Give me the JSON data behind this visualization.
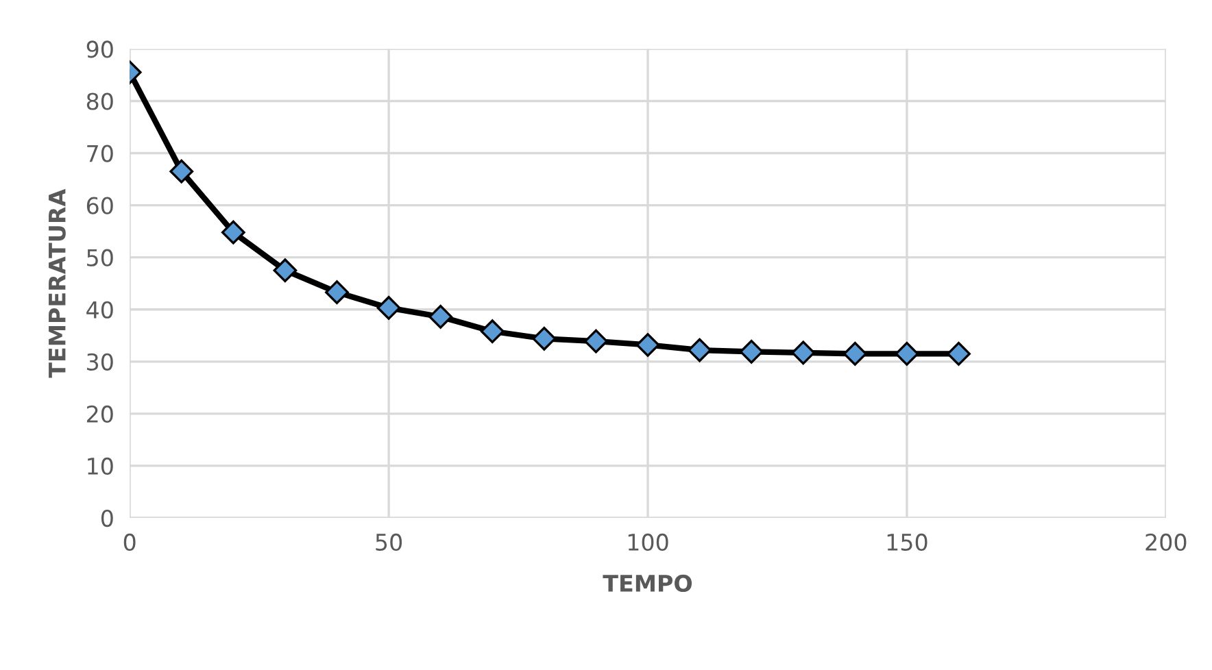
{
  "chart_data": {
    "type": "line",
    "xlabel": "TEMPO",
    "ylabel": "TEMPERATURA",
    "x": [
      0,
      10,
      20,
      30,
      40,
      50,
      60,
      70,
      80,
      90,
      100,
      110,
      120,
      130,
      140,
      150,
      160
    ],
    "series": [
      {
        "color": "#5b9bd5",
        "values": [
          85.5,
          66.5,
          54.8,
          47.5,
          43.3,
          40.3,
          38.6,
          35.8,
          34.4,
          33.9,
          33.2,
          32.2,
          31.9,
          31.7,
          31.5,
          31.5,
          31.5
        ]
      }
    ],
    "xlim": [
      0,
      200
    ],
    "xticks": [
      0,
      50,
      100,
      150,
      200
    ],
    "ylim": [
      0,
      90
    ],
    "yticks": [
      0,
      10,
      20,
      30,
      40,
      50,
      60,
      70,
      80,
      90
    ],
    "grid": true,
    "marker": "diamond",
    "line_style": "solid"
  }
}
